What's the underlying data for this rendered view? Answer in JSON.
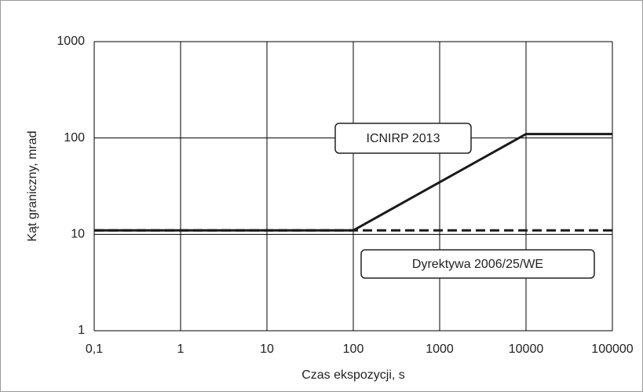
{
  "chart_data": {
    "type": "line",
    "xlabel": "Czas ekspozycji, s",
    "ylabel": "Kąt graniczny, mrad",
    "xscale": "log",
    "yscale": "log",
    "grid": true,
    "xlim": [
      0.1,
      100000
    ],
    "ylim": [
      1,
      1000
    ],
    "xticks": [
      {
        "value": 0.1,
        "label": "0,1"
      },
      1,
      10,
      100,
      1000,
      10000,
      100000
    ],
    "yticks": [
      1,
      10,
      100,
      1000
    ],
    "series": [
      {
        "name": "ICNIRP 2013",
        "color": "#1a1a1a",
        "style": "solid",
        "x": [
          0.1,
          100,
          10000,
          100000
        ],
        "values": [
          11,
          11,
          110,
          110
        ]
      },
      {
        "name": "Dyrektywa 2006/25/WE",
        "color": "#1a1a1a",
        "style": "dashed",
        "x": [
          0.1,
          100000
        ],
        "values": [
          11,
          11
        ]
      }
    ]
  }
}
